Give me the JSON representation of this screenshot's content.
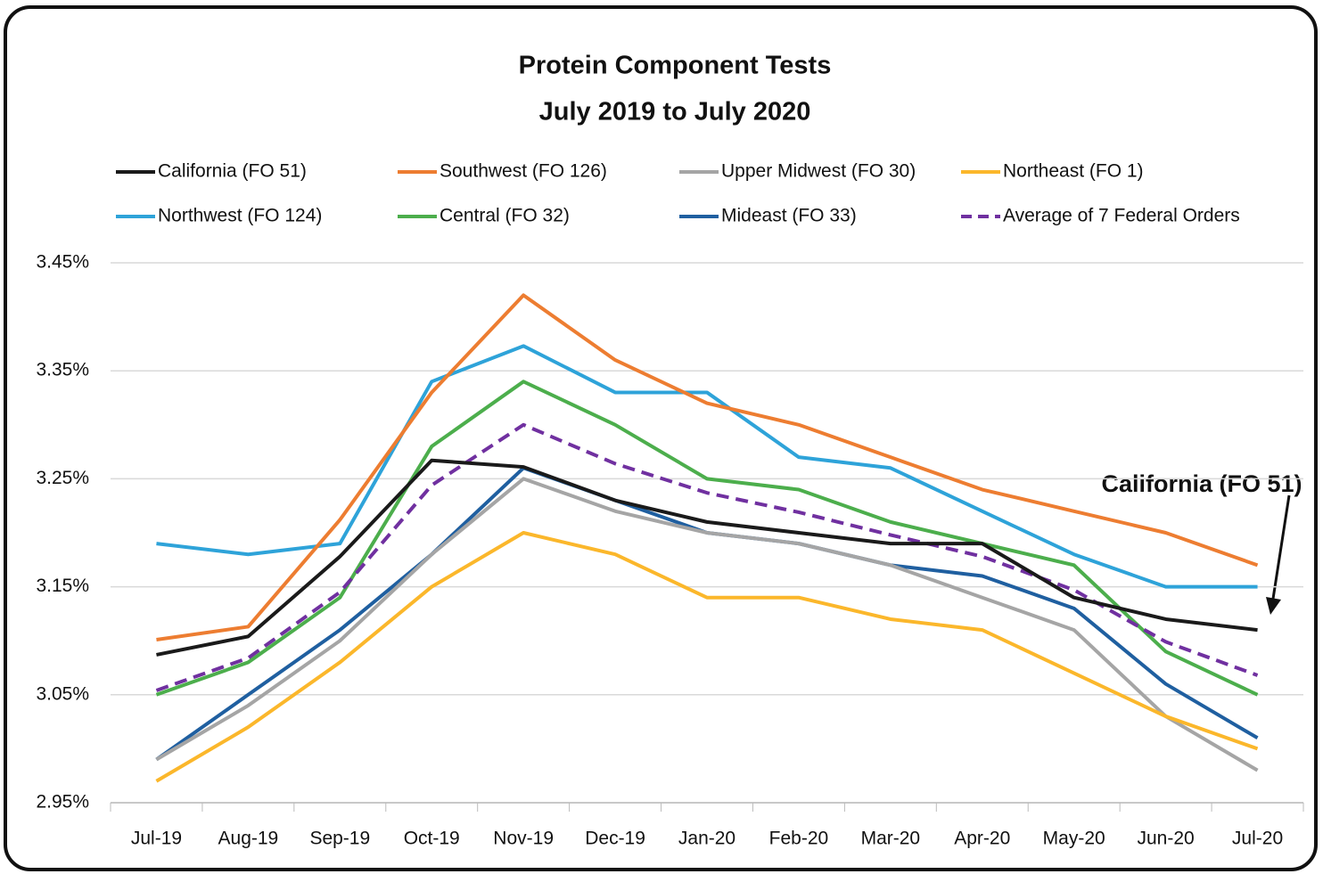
{
  "chart_data": {
    "type": "line",
    "title": "Protein Component Tests",
    "subtitle": "July 2019 to July 2020",
    "categories": [
      "Jul-19",
      "Aug-19",
      "Sep-19",
      "Oct-19",
      "Nov-19",
      "Dec-19",
      "Jan-20",
      "Feb-20",
      "Mar-20",
      "Apr-20",
      "May-20",
      "Jun-20",
      "Jul-20"
    ],
    "series": [
      {
        "name": "California (FO 51)",
        "color": "#1a1a1a",
        "values": [
          3.087,
          3.104,
          3.178,
          3.267,
          3.261,
          3.23,
          3.21,
          3.2,
          3.19,
          3.19,
          3.14,
          3.12,
          3.11
        ]
      },
      {
        "name": "Southwest (FO 126)",
        "color": "#ed7d31",
        "values": [
          3.101,
          3.113,
          3.212,
          3.33,
          3.42,
          3.36,
          3.32,
          3.3,
          3.27,
          3.24,
          3.22,
          3.2,
          3.17
        ]
      },
      {
        "name": "Upper Midwest (FO 30)",
        "color": "#a5a5a5",
        "values": [
          2.99,
          3.04,
          3.1,
          3.18,
          3.25,
          3.22,
          3.2,
          3.19,
          3.17,
          3.14,
          3.11,
          3.03,
          2.98
        ]
      },
      {
        "name": "Northeast (FO 1)",
        "color": "#fbb72b",
        "values": [
          2.97,
          3.02,
          3.08,
          3.15,
          3.2,
          3.18,
          3.14,
          3.14,
          3.12,
          3.11,
          3.07,
          3.03,
          3.0
        ]
      },
      {
        "name": "Northwest (FO 124)",
        "color": "#2ea3d9",
        "values": [
          3.19,
          3.18,
          3.19,
          3.34,
          3.373,
          3.33,
          3.33,
          3.27,
          3.26,
          3.22,
          3.18,
          3.15,
          3.15
        ]
      },
      {
        "name": "Central (FO 32)",
        "color": "#4cae4c",
        "values": [
          3.05,
          3.08,
          3.14,
          3.28,
          3.34,
          3.3,
          3.25,
          3.24,
          3.21,
          3.19,
          3.17,
          3.09,
          3.05
        ]
      },
      {
        "name": "Mideast (FO 33)",
        "color": "#1f5fa0",
        "values": [
          2.99,
          3.05,
          3.11,
          3.18,
          3.26,
          3.23,
          3.2,
          3.19,
          3.17,
          3.16,
          3.13,
          3.06,
          3.01
        ]
      },
      {
        "name": "Average of 7 Federal Orders",
        "color": "#7030a0",
        "dash": true,
        "values": [
          3.054,
          3.084,
          3.145,
          3.244,
          3.3,
          3.264,
          3.237,
          3.219,
          3.198,
          3.178,
          3.147,
          3.099,
          3.068
        ]
      }
    ],
    "ylim": [
      2.95,
      3.45
    ],
    "yticks": [
      {
        "value": 2.95,
        "label": "2.95%"
      },
      {
        "value": 3.05,
        "label": "3.05%"
      },
      {
        "value": 3.15,
        "label": "3.15%"
      },
      {
        "value": 3.25,
        "label": "3.25%"
      },
      {
        "value": 3.35,
        "label": "3.35%"
      },
      {
        "value": 3.45,
        "label": "3.45%"
      }
    ],
    "grid": true,
    "annotation": "California (FO 51)"
  }
}
